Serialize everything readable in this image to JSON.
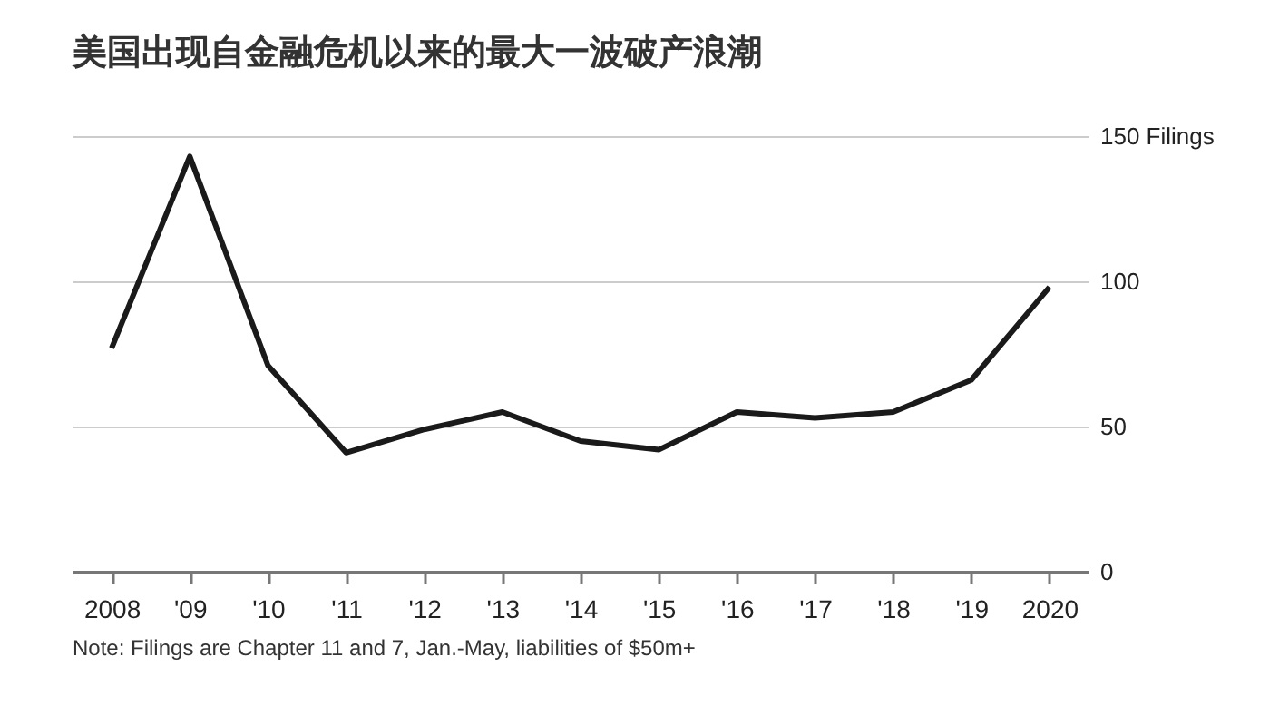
{
  "chart_data": {
    "type": "line",
    "title": "美国出现自金融危机以来的最大一波破产浪潮",
    "categories": [
      "2008",
      "'09",
      "'10",
      "'11",
      "'12",
      "'13",
      "'14",
      "'15",
      "'16",
      "'17",
      "'18",
      "'19",
      "2020"
    ],
    "series": [
      {
        "color": "#1a1a1a",
        "values": [
          77,
          143,
          71,
          41,
          49,
          55,
          45,
          42,
          55,
          53,
          55,
          66,
          98
        ]
      }
    ],
    "ylim": [
      0,
      150
    ],
    "yticks": [
      0,
      50,
      100,
      {
        "value": 150,
        "label": "150 Filings"
      }
    ],
    "grid": "y",
    "marker": "none",
    "line_style": "solid",
    "annotations": [
      "Note: Filings are Chapter 11 and 7, Jan.-May, liabilities of $50m+"
    ]
  }
}
